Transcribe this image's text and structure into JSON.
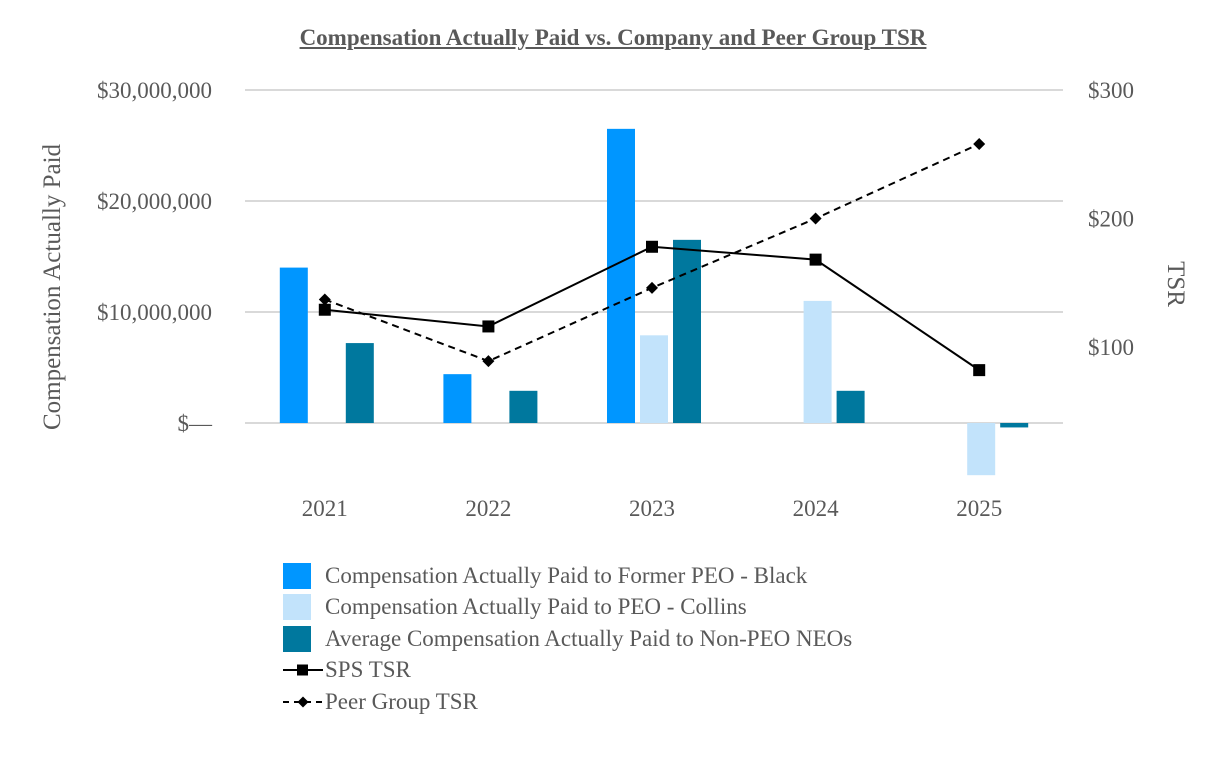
{
  "chart_data": {
    "type": "bar",
    "title": "Compensation Actually Paid vs. Company and Peer Group TSR",
    "categories": [
      "2021",
      "2022",
      "2023",
      "2024",
      "2025"
    ],
    "ylabel": "Compensation Actually Paid",
    "y2label": "TSR",
    "ylim": [
      -5000000,
      30000000
    ],
    "y_ticks": [
      0,
      10000000,
      20000000,
      30000000
    ],
    "y_tick_labels": [
      "$—",
      "$10,000,000",
      "$20,000,000",
      "$30,000,000"
    ],
    "y2lim": [
      39.5,
      300
    ],
    "y2_ticks": [
      100,
      200,
      300
    ],
    "y2_tick_labels": [
      "$100",
      "$200",
      "$300"
    ],
    "grid": true,
    "legend_position": "bottom",
    "series": [
      {
        "name": "Compensation Actually Paid to Former PEO - Black",
        "type": "bar",
        "axis": "left",
        "color": "#0096FF",
        "values": [
          14000000,
          4400000,
          26500000,
          null,
          null
        ]
      },
      {
        "name": "Compensation Actually Paid to PEO - Collins",
        "type": "bar",
        "axis": "left",
        "color": "#C2E3FB",
        "values": [
          null,
          null,
          7900000,
          11000000,
          -4700000
        ]
      },
      {
        "name": "Average Compensation Actually Paid to Non-PEO NEOs",
        "type": "bar",
        "axis": "left",
        "color": "#00789E",
        "values": [
          7200000,
          2900000,
          16500000,
          2900000,
          -400000
        ]
      },
      {
        "name": "SPS TSR",
        "type": "line",
        "axis": "right",
        "color": "#000000",
        "marker": "square",
        "dash": "solid",
        "values": [
          129,
          116,
          178,
          168,
          82
        ]
      },
      {
        "name": "Peer Group TSR",
        "type": "line",
        "axis": "right",
        "color": "#000000",
        "marker": "diamond",
        "dash": "dashed",
        "values": [
          137,
          89,
          146,
          200,
          258
        ]
      }
    ]
  }
}
